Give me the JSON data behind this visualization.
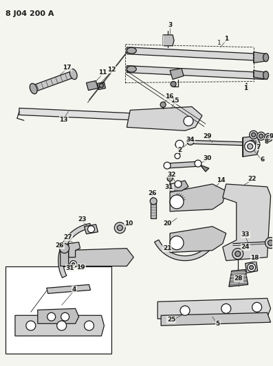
{
  "title": "8 J04 200 A",
  "bg_color": "#f5f5f0",
  "line_color": "#1a1a1a",
  "title_fontsize": 8,
  "label_fontsize": 6.5,
  "fig_width": 3.97,
  "fig_height": 5.33,
  "dpi": 100
}
